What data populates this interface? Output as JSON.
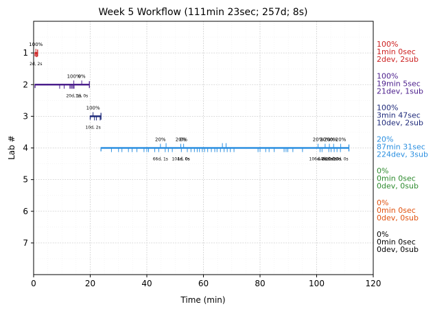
{
  "chart_data": {
    "type": "timeline",
    "title": "Week 5 Workflow (111min 23sec; 257d; 8s)",
    "xlabel": "Time (min)",
    "ylabel": "Lab #",
    "xlim": [
      0,
      120
    ],
    "ylim": [
      8,
      0
    ],
    "x_ticks": [
      0,
      20,
      40,
      60,
      80,
      100,
      120
    ],
    "y_ticks": [
      1,
      2,
      3,
      4,
      5,
      6,
      7
    ],
    "grid": true,
    "labs": [
      {
        "lab": 1,
        "color": "#cc1f1f",
        "start": 0.5,
        "end": 1.4,
        "events": [
          0.9,
          1.2
        ],
        "stage_marks": [
          {
            "x": 0.8,
            "pct": "100%",
            "label": "2d, 2s"
          }
        ],
        "summary": [
          "100%",
          "1min 0sec",
          "2dev, 2sub"
        ]
      },
      {
        "lab": 2,
        "color": "#4b1e8c",
        "start": 0.5,
        "end": 19.7,
        "events": [
          9.2,
          10.8,
          12.8,
          13.2,
          13.6,
          14.0,
          14.3
        ],
        "stage_marks": [
          {
            "x": 14.2,
            "pct": "100%",
            "label": "20d, 1s"
          },
          {
            "x": 17.0,
            "pct": "0%",
            "label": "1d, 0s"
          }
        ],
        "summary": [
          "100%",
          "19min 5sec",
          "21dev, 1sub"
        ]
      },
      {
        "lab": 3,
        "color": "#1f2a7a",
        "start": 20.0,
        "end": 23.8,
        "events": [
          21.5,
          22.2,
          23.5
        ],
        "stage_marks": [
          {
            "x": 21.0,
            "pct": "100%",
            "label": "10d, 2s"
          }
        ],
        "summary": [
          "100%",
          "3min 47sec",
          "10dev, 2sub"
        ]
      },
      {
        "lab": 4,
        "color": "#2b8fe0",
        "start": 23.8,
        "end": 111.4,
        "events": [
          27.5,
          30,
          31.2,
          33.5,
          34.8,
          36.5,
          39,
          40,
          40.6,
          42.8,
          44.2,
          46.5,
          47.6,
          49,
          52.2,
          54.3,
          55.6,
          56.8,
          57.8,
          58.6,
          59.6,
          60.4,
          61.5,
          62.8,
          64,
          64.8,
          66,
          67.3,
          68.4,
          69.5,
          70.8,
          79.3,
          80,
          82,
          83.2,
          85,
          88.5,
          89.2,
          89.8,
          91.6,
          95,
          101.2,
          101.9,
          104.3,
          105.1,
          106.2,
          107.2,
          108.4
        ],
        "up_ticks": [
          46.8,
          66.7,
          68.0
        ],
        "stage_marks": [
          {
            "x": 44.8,
            "pct": "20%",
            "label": "66d, 1s"
          },
          {
            "x": 52.0,
            "pct": "20%",
            "label": "104d, 0s"
          },
          {
            "x": 53.0,
            "pct": "0%",
            "label": "1d, 0s"
          },
          {
            "x": 100.5,
            "pct": "20%",
            "label": "106d, 0s"
          },
          {
            "x": 103.0,
            "pct": "20%",
            "label": "44d, 0s"
          },
          {
            "x": 104.5,
            "pct": "20%",
            "label": "24d, 0s"
          },
          {
            "x": 106.0,
            "pct": "0%",
            "label": "10d, 0s"
          },
          {
            "x": 108.5,
            "pct": "20%",
            "label": "30d, 0s"
          }
        ],
        "summary": [
          "20%",
          "87min 31sec",
          "224dev, 3sub"
        ]
      },
      {
        "lab": 5,
        "color": "#2e8b2e",
        "start": null,
        "end": null,
        "events": [],
        "stage_marks": [],
        "summary": [
          "0%",
          "0min 0sec",
          "0dev, 0sub"
        ]
      },
      {
        "lab": 6,
        "color": "#e0520f",
        "start": null,
        "end": null,
        "events": [],
        "stage_marks": [],
        "summary": [
          "0%",
          "0min 0sec",
          "0dev, 0sub"
        ]
      },
      {
        "lab": 7,
        "color": "#000000",
        "start": null,
        "end": null,
        "events": [],
        "stage_marks": [],
        "summary": [
          "0%",
          "0min 0sec",
          "0dev, 0sub"
        ]
      }
    ]
  }
}
